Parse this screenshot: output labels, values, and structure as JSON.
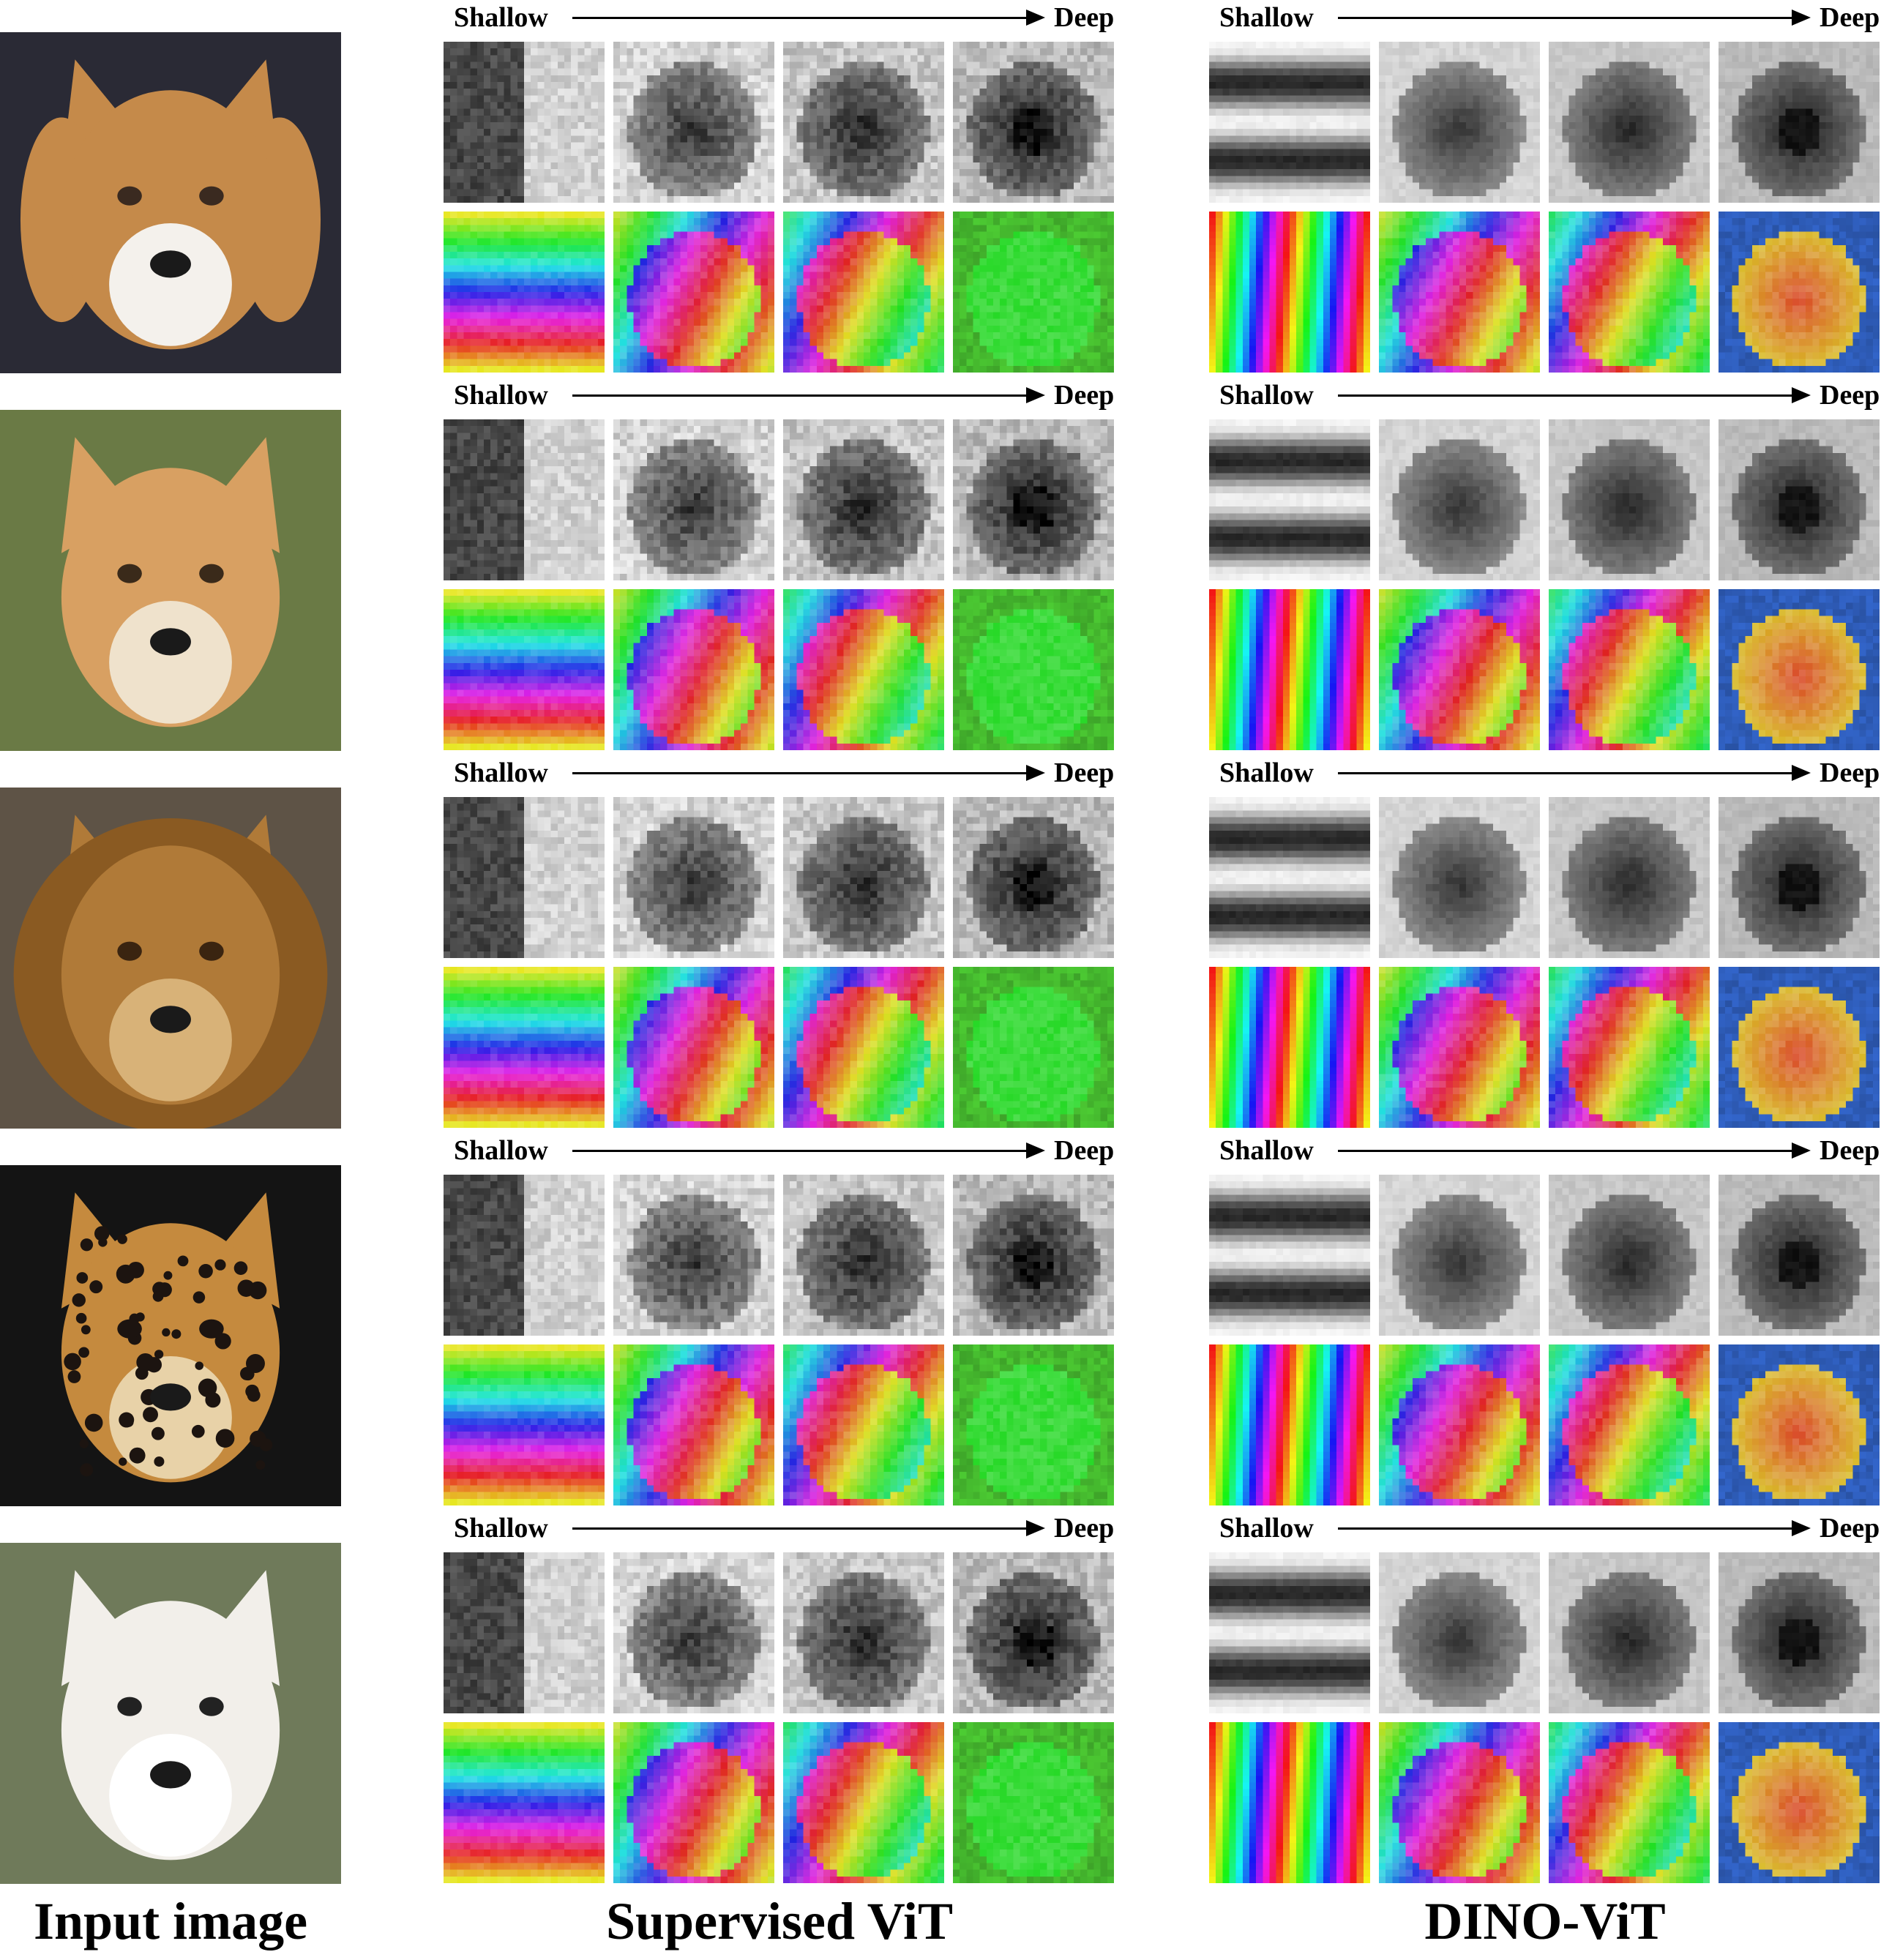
{
  "arrow": {
    "start_label": "Shallow",
    "end_label": "Deep"
  },
  "captions": {
    "input": "Input image",
    "supervised": "Supervised ViT",
    "dino": "DINO-ViT"
  },
  "rows": [
    {
      "animal": "beagle",
      "colors": {
        "bg": "#2a2a35",
        "fur": "#c58a4a",
        "fur2": "#f4f1ec",
        "accent": "#3a2a20"
      }
    },
    {
      "animal": "fox cub",
      "colors": {
        "bg": "#6a7a45",
        "fur": "#d8a062",
        "fur2": "#efe2cc",
        "accent": "#3a2a1a"
      }
    },
    {
      "animal": "lion",
      "colors": {
        "bg": "#5e5346",
        "fur": "#b07a38",
        "fur2": "#d8b278",
        "accent": "#3a2410"
      }
    },
    {
      "animal": "jaguar",
      "colors": {
        "bg": "#141414",
        "fur": "#c58a3e",
        "fur2": "#e8d2a8",
        "accent": "#1c1410"
      }
    },
    {
      "animal": "white wolf",
      "colors": {
        "bg": "#6f7a5a",
        "fur": "#f2efea",
        "fur2": "#ffffff",
        "accent": "#222222"
      }
    }
  ]
}
